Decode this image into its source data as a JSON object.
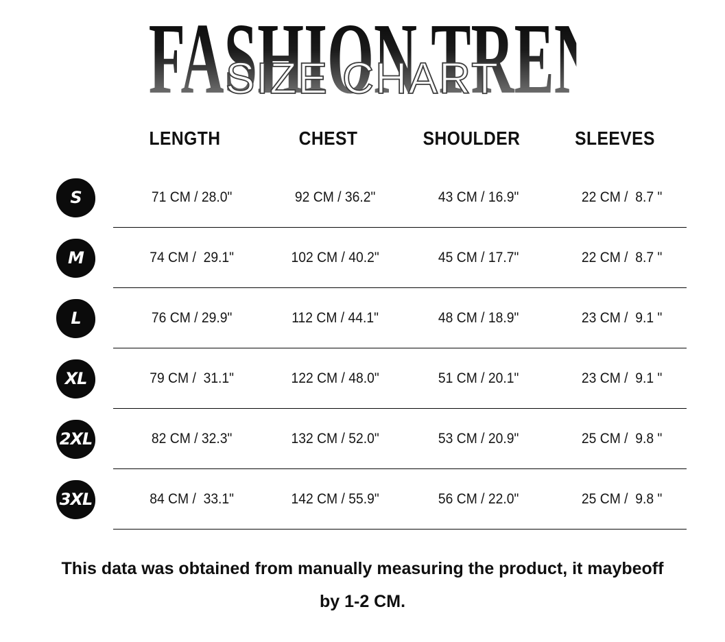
{
  "title": "FASHION TRENDS",
  "subtitle": "SIZE CHART",
  "chart_data": {
    "type": "table",
    "title": "FASHION TRENDS",
    "subtitle": "SIZE CHART",
    "columns": [
      "LENGTH",
      "CHEST",
      "SHOULDER",
      "SLEEVES"
    ],
    "rows": [
      {
        "size": "S",
        "length": "71 CM / 28.0\"",
        "chest": "92 CM / 36.2\"",
        "shoulder": "43 CM / 16.9\"",
        "sleeves": "22 CM /  8.7 \""
      },
      {
        "size": "M",
        "length": "74 CM /  29.1\"",
        "chest": "102 CM / 40.2\"",
        "shoulder": "45 CM / 17.7\"",
        "sleeves": "22 CM /  8.7 \""
      },
      {
        "size": "L",
        "length": "76 CM / 29.9\"",
        "chest": "112 CM / 44.1\"",
        "shoulder": "48 CM / 18.9\"",
        "sleeves": "23 CM /  9.1 \""
      },
      {
        "size": "XL",
        "length": "79 CM /  31.1\"",
        "chest": "122 CM / 48.0\"",
        "shoulder": "51 CM / 20.1\"",
        "sleeves": "23 CM /  9.1 \""
      },
      {
        "size": "2XL",
        "length": "82 CM / 32.3\"",
        "chest": "132 CM / 52.0\"",
        "shoulder": "53 CM / 20.9\"",
        "sleeves": "25 CM /  9.8 \""
      },
      {
        "size": "3XL",
        "length": "84 CM /  33.1\"",
        "chest": "142 CM / 55.9\"",
        "shoulder": "56 CM / 22.0\"",
        "sleeves": "25 CM /  9.8 \""
      }
    ],
    "note": "This data was obtained from manually measuring the product, it maybeoff by 1-2 CM."
  },
  "footer": {
    "line1": "This data was obtained from manually measuring the product, it maybeoff",
    "line2": "by 1-2 CM."
  },
  "colors": {
    "background": "#ffffff",
    "badge": "#0b0b0b",
    "badge_text": "#ffffff",
    "divider": "#0a0a0a",
    "title_gradient_top": "#050505",
    "title_gradient_bottom": "#8c8c8c",
    "subtitle_fill": "#ffffff",
    "subtitle_outline": "#3d3d3d"
  }
}
